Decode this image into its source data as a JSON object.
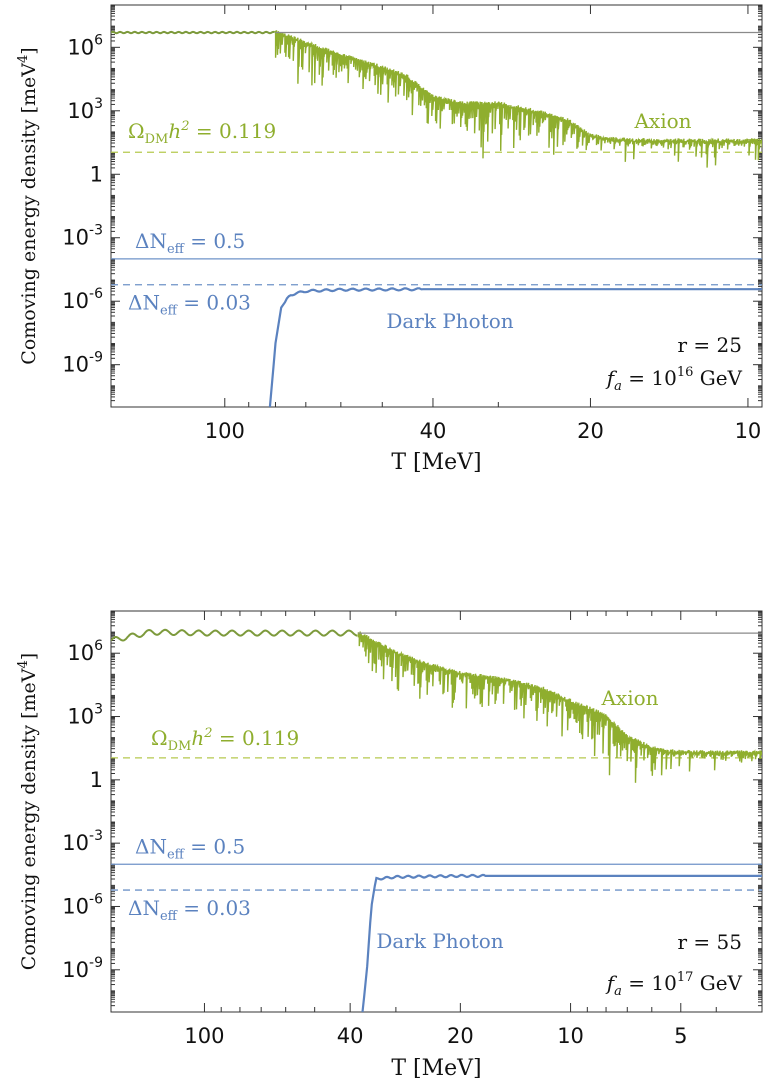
{
  "colors": {
    "axion": "#8fae2e",
    "axion_early": "#7d9a3c",
    "dark_photon": "#5b82bf",
    "reference": "#8a8a8a",
    "dm_line": "#b5c94f",
    "neff_line": "#6f93c8"
  },
  "chart_data": [
    {
      "type": "line",
      "log_y": true,
      "log_x": true,
      "x_reversed": true,
      "xlabel": "T [MeV]",
      "ylabel": "Comoving energy density [meV^4]",
      "ylabel_text": "Comoving energy density",
      "ylabel_unit": "[meV",
      "ylabel_unit_sup": "4",
      "ylabel_unit_close": "]",
      "xlim": [
        165,
        9.4
      ],
      "ylim": [
        1e-11,
        100000000.0
      ],
      "x_ticks": [
        {
          "v": 100,
          "label": "100"
        },
        {
          "v": 40,
          "label": "40"
        },
        {
          "v": 20,
          "label": "20"
        },
        {
          "v": 10,
          "label": "10"
        }
      ],
      "y_ticks": [
        {
          "v": 1000000.0,
          "base": "10",
          "exp": "6"
        },
        {
          "v": 1000.0,
          "base": "10",
          "exp": "3"
        },
        {
          "v": 1,
          "base": "1",
          "exp": ""
        },
        {
          "v": 0.001,
          "base": "10",
          "exp": "-3"
        },
        {
          "v": 1e-06,
          "base": "10",
          "exp": "-6"
        },
        {
          "v": 1e-09,
          "base": "10",
          "exp": "-9"
        }
      ],
      "params": {
        "r": "r = 25",
        "fa_pre": "= 10",
        "fa_exp": "16",
        "fa_post": " GeV"
      },
      "horizontal_lines": [
        {
          "name": "Ω_DM h² = 0.119",
          "y": 11,
          "style": "dashed",
          "color": "dm"
        },
        {
          "name": "ΔN_eff = 0.5",
          "y": 0.0001,
          "style": "solid",
          "color": "neff"
        },
        {
          "name": "ΔN_eff = 0.03",
          "y": 6e-06,
          "style": "dashed",
          "color": "neff"
        }
      ],
      "labels": {
        "dm": {
          "pre": "Ω",
          "sub": "DM",
          "mid": "h",
          "sup": "2",
          "post": " = 0.119"
        },
        "neff_a": {
          "pre": "ΔN",
          "sub": "eff",
          "post": " = 0.5"
        },
        "neff_b": {
          "pre": "ΔN",
          "sub": "eff",
          "post": " = 0.03"
        },
        "axion": "Axion",
        "dark_photon": "Dark Photon"
      },
      "series": [
        {
          "name": "Axion",
          "points": [
            [
              165,
              5000000.0
            ],
            [
              140,
              5000000.0
            ],
            [
              100,
              5000000.0
            ],
            [
              80,
              5000000.0
            ],
            [
              70,
              1500000.0
            ],
            [
              60,
              400000.0
            ],
            [
              50,
              100000.0
            ],
            [
              45,
              40000.0
            ],
            [
              40,
              4000
            ],
            [
              35,
              2000
            ],
            [
              30,
              2000
            ],
            [
              25,
              800
            ],
            [
              22,
              300
            ],
            [
              20,
              60
            ],
            [
              18,
              40
            ],
            [
              15,
              35
            ],
            [
              9.4,
              35
            ]
          ]
        },
        {
          "name": "Reference",
          "points": [
            [
              80,
              5000000.0
            ],
            [
              9.4,
              5000000.0
            ]
          ]
        },
        {
          "name": "Dark Photon",
          "points": [
            [
              82,
              1e-11
            ],
            [
              80,
              1e-08
            ],
            [
              78,
              5e-07
            ],
            [
              75,
              2e-06
            ],
            [
              70,
              3e-06
            ],
            [
              60,
              3.5e-06
            ],
            [
              40,
              3.7e-06
            ],
            [
              9.4,
              3.7e-06
            ]
          ]
        }
      ]
    },
    {
      "type": "line",
      "log_y": true,
      "log_x": true,
      "x_reversed": true,
      "xlabel": "T [MeV]",
      "ylabel": "Comoving energy density [meV^4]",
      "ylabel_text": "Comoving energy density",
      "ylabel_unit": "[meV",
      "ylabel_unit_sup": "4",
      "ylabel_unit_close": "]",
      "xlim": [
        180,
        3.0
      ],
      "ylim": [
        1e-11,
        100000000.0
      ],
      "x_ticks": [
        {
          "v": 100,
          "label": "100"
        },
        {
          "v": 40,
          "label": "40"
        },
        {
          "v": 20,
          "label": "20"
        },
        {
          "v": 10,
          "label": "10"
        },
        {
          "v": 5,
          "label": "5"
        }
      ],
      "y_ticks": [
        {
          "v": 1000000.0,
          "base": "10",
          "exp": "6"
        },
        {
          "v": 1000.0,
          "base": "10",
          "exp": "3"
        },
        {
          "v": 1,
          "base": "1",
          "exp": ""
        },
        {
          "v": 0.001,
          "base": "10",
          "exp": "-3"
        },
        {
          "v": 1e-06,
          "base": "10",
          "exp": "-6"
        },
        {
          "v": 1e-09,
          "base": "10",
          "exp": "-9"
        }
      ],
      "params": {
        "r": "r = 55",
        "fa_pre": "= 10",
        "fa_exp": "17",
        "fa_post": " GeV"
      },
      "horizontal_lines": [
        {
          "name": "Ω_DM h² = 0.119",
          "y": 11,
          "style": "dashed",
          "color": "dm"
        },
        {
          "name": "ΔN_eff = 0.5",
          "y": 0.0001,
          "style": "solid",
          "color": "neff"
        },
        {
          "name": "ΔN_eff = 0.03",
          "y": 6e-06,
          "style": "dashed",
          "color": "neff"
        }
      ],
      "labels": {
        "dm": {
          "pre": "Ω",
          "sub": "DM",
          "mid": "h",
          "sup": "2",
          "post": " = 0.119"
        },
        "neff_a": {
          "pre": "ΔN",
          "sub": "eff",
          "post": " = 0.5"
        },
        "neff_b": {
          "pre": "ΔN",
          "sub": "eff",
          "post": " = 0.03"
        },
        "axion": "Axion",
        "dark_photon": "Dark Photon"
      },
      "series": [
        {
          "name": "Axion",
          "points": [
            [
              180,
              4000000.0
            ],
            [
              140,
              10000000.0
            ],
            [
              100,
              9000000.0
            ],
            [
              60,
              9000000.0
            ],
            [
              38,
              9000000.0
            ],
            [
              34,
              3000000.0
            ],
            [
              30,
              1000000.0
            ],
            [
              25,
              300000.0
            ],
            [
              20,
              100000.0
            ],
            [
              15,
              50000.0
            ],
            [
              12,
              20000.0
            ],
            [
              10,
              5000
            ],
            [
              8,
              1000
            ],
            [
              7,
              100
            ],
            [
              6,
              30
            ],
            [
              5.5,
              20
            ],
            [
              4.5,
              18
            ],
            [
              3.0,
              18
            ]
          ]
        },
        {
          "name": "Reference",
          "points": [
            [
              38,
              9000000.0
            ],
            [
              3.0,
              9000000.0
            ]
          ]
        },
        {
          "name": "Dark Photon",
          "points": [
            [
              37,
              1e-11
            ],
            [
              36,
              1e-09
            ],
            [
              35,
              1e-06
            ],
            [
              34,
              2e-05
            ],
            [
              30,
              2.5e-05
            ],
            [
              20,
              2.8e-05
            ],
            [
              3.0,
              2.8e-05
            ]
          ]
        }
      ]
    }
  ]
}
